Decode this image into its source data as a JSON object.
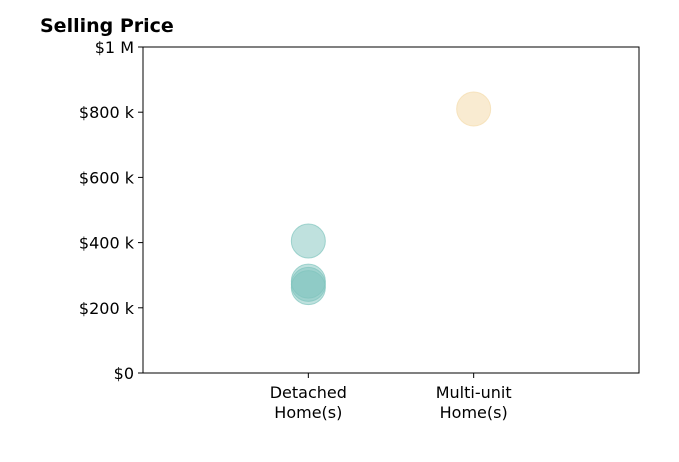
{
  "chart_data": {
    "type": "scatter",
    "title": "Selling Price",
    "xlabel": "",
    "ylabel": "",
    "categories": [
      [
        "Detached",
        "Home(s)"
      ],
      [
        "Multi-unit",
        "Home(s)"
      ]
    ],
    "xlim": [
      -1,
      2
    ],
    "ylim": [
      0,
      1000000
    ],
    "yticks": [
      {
        "value": 0,
        "label": "$0"
      },
      {
        "value": 200000,
        "label": "$200 k"
      },
      {
        "value": 400000,
        "label": "$400 k"
      },
      {
        "value": 600000,
        "label": "$600 k"
      },
      {
        "value": 800000,
        "label": "$800 k"
      },
      {
        "value": 1000000,
        "label": "$1 M"
      }
    ],
    "grid": false,
    "series": [
      {
        "category": 0,
        "color": "#7fc4bd",
        "alpha": 0.5,
        "points": [
          {
            "x": 0,
            "y": 405000
          },
          {
            "x": 0,
            "y": 282000
          },
          {
            "x": 0,
            "y": 262000
          },
          {
            "x": 0,
            "y": 272000
          }
        ]
      },
      {
        "category": 1,
        "color": "#f5deb3",
        "alpha": 0.6,
        "points": [
          {
            "x": 1,
            "y": 810000
          }
        ]
      }
    ]
  }
}
